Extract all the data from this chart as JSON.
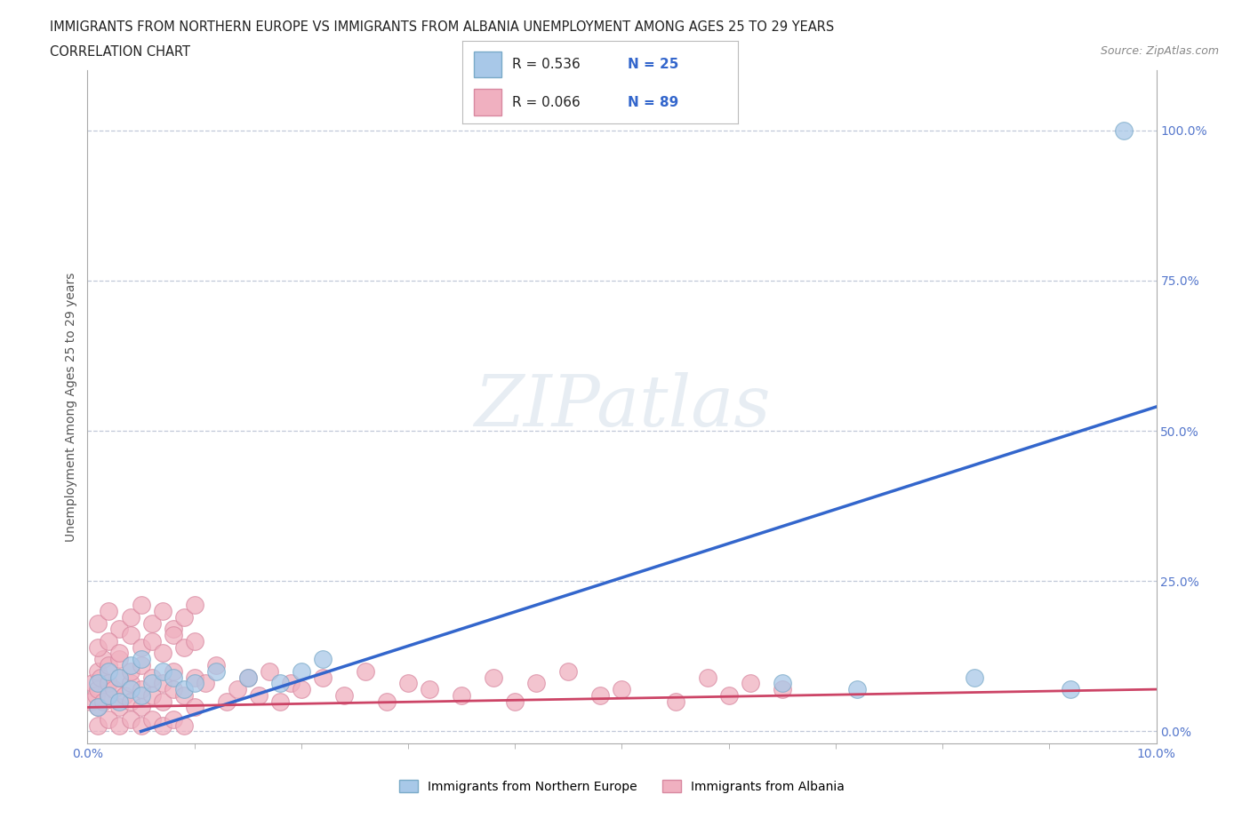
{
  "title_line1": "IMMIGRANTS FROM NORTHERN EUROPE VS IMMIGRANTS FROM ALBANIA UNEMPLOYMENT AMONG AGES 25 TO 29 YEARS",
  "title_line2": "CORRELATION CHART",
  "source_text": "Source: ZipAtlas.com",
  "ylabel": "Unemployment Among Ages 25 to 29 years",
  "xlim": [
    0.0,
    0.1
  ],
  "ylim": [
    -0.02,
    1.1
  ],
  "ytick_labels": [
    "0.0%",
    "25.0%",
    "50.0%",
    "75.0%",
    "100.0%"
  ],
  "ytick_values": [
    0.0,
    0.25,
    0.5,
    0.75,
    1.0
  ],
  "blue_color": "#a8c8e8",
  "blue_edge": "#7aaac8",
  "pink_color": "#f0b0c0",
  "pink_edge": "#d888a0",
  "trend_blue": "#3366cc",
  "trend_pink": "#cc4466",
  "legend_label_blue": "Immigrants from Northern Europe",
  "legend_label_pink": "Immigrants from Albania",
  "watermark": "ZIPatlas",
  "blue_trend_x": [
    0.005,
    0.1
  ],
  "blue_trend_y": [
    0.0,
    0.54
  ],
  "pink_trend_x": [
    0.0,
    0.1
  ],
  "pink_trend_y": [
    0.04,
    0.07
  ],
  "blue_scatter_x": [
    0.001,
    0.001,
    0.002,
    0.002,
    0.003,
    0.003,
    0.004,
    0.004,
    0.005,
    0.005,
    0.006,
    0.007,
    0.008,
    0.009,
    0.01,
    0.012,
    0.015,
    0.018,
    0.02,
    0.022,
    0.065,
    0.072,
    0.083,
    0.092,
    0.097
  ],
  "blue_scatter_y": [
    0.04,
    0.08,
    0.06,
    0.1,
    0.05,
    0.09,
    0.07,
    0.11,
    0.06,
    0.12,
    0.08,
    0.1,
    0.09,
    0.07,
    0.08,
    0.1,
    0.09,
    0.08,
    0.1,
    0.12,
    0.08,
    0.07,
    0.09,
    0.07,
    1.0
  ],
  "pink_scatter_x": [
    0.0003,
    0.0005,
    0.0008,
    0.001,
    0.001,
    0.001,
    0.0012,
    0.0015,
    0.0015,
    0.002,
    0.002,
    0.002,
    0.0025,
    0.003,
    0.003,
    0.003,
    0.0035,
    0.004,
    0.004,
    0.004,
    0.005,
    0.005,
    0.005,
    0.006,
    0.006,
    0.007,
    0.007,
    0.008,
    0.008,
    0.009,
    0.01,
    0.01,
    0.011,
    0.012,
    0.013,
    0.014,
    0.015,
    0.016,
    0.017,
    0.018,
    0.019,
    0.02,
    0.022,
    0.024,
    0.026,
    0.028,
    0.03,
    0.032,
    0.035,
    0.038,
    0.04,
    0.042,
    0.045,
    0.048,
    0.05,
    0.055,
    0.058,
    0.06,
    0.062,
    0.065,
    0.001,
    0.002,
    0.003,
    0.004,
    0.005,
    0.006,
    0.007,
    0.008,
    0.009,
    0.01,
    0.001,
    0.002,
    0.003,
    0.004,
    0.005,
    0.006,
    0.007,
    0.008,
    0.009,
    0.01,
    0.001,
    0.002,
    0.003,
    0.004,
    0.005,
    0.006,
    0.007,
    0.008,
    0.009
  ],
  "pink_scatter_y": [
    0.05,
    0.08,
    0.06,
    0.1,
    0.04,
    0.07,
    0.09,
    0.05,
    0.12,
    0.08,
    0.06,
    0.11,
    0.07,
    0.09,
    0.04,
    0.12,
    0.06,
    0.08,
    0.05,
    0.1,
    0.07,
    0.04,
    0.11,
    0.06,
    0.09,
    0.05,
    0.08,
    0.07,
    0.1,
    0.06,
    0.09,
    0.04,
    0.08,
    0.11,
    0.05,
    0.07,
    0.09,
    0.06,
    0.1,
    0.05,
    0.08,
    0.07,
    0.09,
    0.06,
    0.1,
    0.05,
    0.08,
    0.07,
    0.06,
    0.09,
    0.05,
    0.08,
    0.1,
    0.06,
    0.07,
    0.05,
    0.09,
    0.06,
    0.08,
    0.07,
    0.18,
    0.2,
    0.17,
    0.19,
    0.21,
    0.18,
    0.2,
    0.17,
    0.19,
    0.21,
    0.14,
    0.15,
    0.13,
    0.16,
    0.14,
    0.15,
    0.13,
    0.16,
    0.14,
    0.15,
    0.01,
    0.02,
    0.01,
    0.02,
    0.01,
    0.02,
    0.01,
    0.02,
    0.01
  ]
}
